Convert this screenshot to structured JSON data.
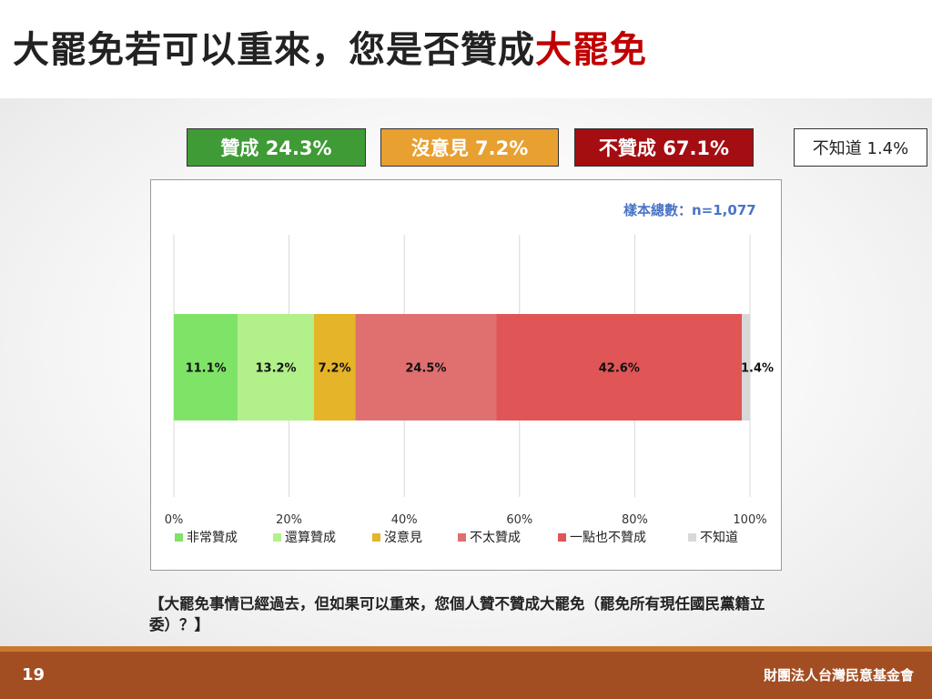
{
  "slide": {
    "title_main": "大罷免若可以重來，您是否贊成",
    "title_highlight": "大罷免",
    "page_number": "19",
    "organization": "財團法人台灣民意基金會",
    "question": "【大罷免事情已經過去，但如果可以重來，您個人贊不贊成大罷免（罷免所有現任國民黨籍立委）？】"
  },
  "summary": {
    "approve": "贊成 24.3%",
    "no_opinion": "沒意見 7.2%",
    "disapprove": "不贊成 67.1%",
    "unknown": "不知道 1.4%"
  },
  "colors": {
    "strongly_approve": "#7fe368",
    "somewhat_approve": "#b2f08a",
    "no_opinion": "#e6b428",
    "somewhat_disapprove": "#e07070",
    "strongly_disapprove": "#e05555",
    "unknown": "#d8d8d8",
    "summary_green": "#3f9b35",
    "summary_orange": "#e8a030",
    "summary_red": "#a40d12",
    "highlight_red": "#c00000",
    "footer": "#a34e22"
  },
  "chart_data": {
    "type": "bar",
    "orientation": "horizontal",
    "stacked": true,
    "sample_note": "樣本總數：n=1,077",
    "xlim": [
      0,
      100
    ],
    "x_ticks": [
      "0%",
      "20%",
      "40%",
      "60%",
      "80%",
      "100%"
    ],
    "grid": true,
    "legend_position": "bottom",
    "series": [
      {
        "name": "非常贊成",
        "value": 11.1,
        "label": "11.1%",
        "color": "#7fe368"
      },
      {
        "name": "還算贊成",
        "value": 13.2,
        "label": "13.2%",
        "color": "#b2f08a"
      },
      {
        "name": "沒意見",
        "value": 7.2,
        "label": "7.2%",
        "color": "#e6b428"
      },
      {
        "name": "不太贊成",
        "value": 24.5,
        "label": "24.5%",
        "color": "#e07070"
      },
      {
        "name": "一點也不贊成",
        "value": 42.6,
        "label": "42.6%",
        "color": "#e05555"
      },
      {
        "name": "不知道",
        "value": 1.4,
        "label": "1.4%",
        "color": "#d8d8d8"
      }
    ]
  }
}
